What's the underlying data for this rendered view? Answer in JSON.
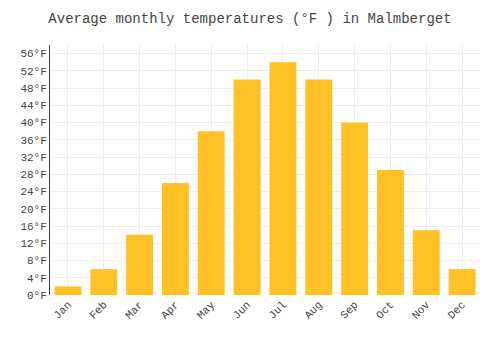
{
  "chart_data": {
    "type": "bar",
    "title": "Average monthly temperatures (°F ) in Malmberget",
    "categories": [
      "Jan",
      "Feb",
      "Mar",
      "Apr",
      "May",
      "Jun",
      "Jul",
      "Aug",
      "Sep",
      "Oct",
      "Nov",
      "Dec"
    ],
    "values": [
      2,
      6,
      14,
      26,
      38,
      50,
      54,
      50,
      40,
      29,
      15,
      6
    ],
    "color": "#FFC125",
    "ylim": [
      0,
      58
    ],
    "yticks": [
      {
        "value": 0,
        "label": "0°F"
      },
      {
        "value": 4,
        "label": "4°F"
      },
      {
        "value": 8,
        "label": "8°F"
      },
      {
        "value": 12,
        "label": "12°F"
      },
      {
        "value": 16,
        "label": "16°F"
      },
      {
        "value": 20,
        "label": "20°F"
      },
      {
        "value": 24,
        "label": "24°F"
      },
      {
        "value": 28,
        "label": "28°F"
      },
      {
        "value": 32,
        "label": "32°F"
      },
      {
        "value": 36,
        "label": "36°F"
      },
      {
        "value": 40,
        "label": "40°F"
      },
      {
        "value": 44,
        "label": "44°F"
      },
      {
        "value": 48,
        "label": "48°F"
      },
      {
        "value": 52,
        "label": "52°F"
      },
      {
        "value": 56,
        "label": "56°F"
      }
    ],
    "grid": true
  }
}
